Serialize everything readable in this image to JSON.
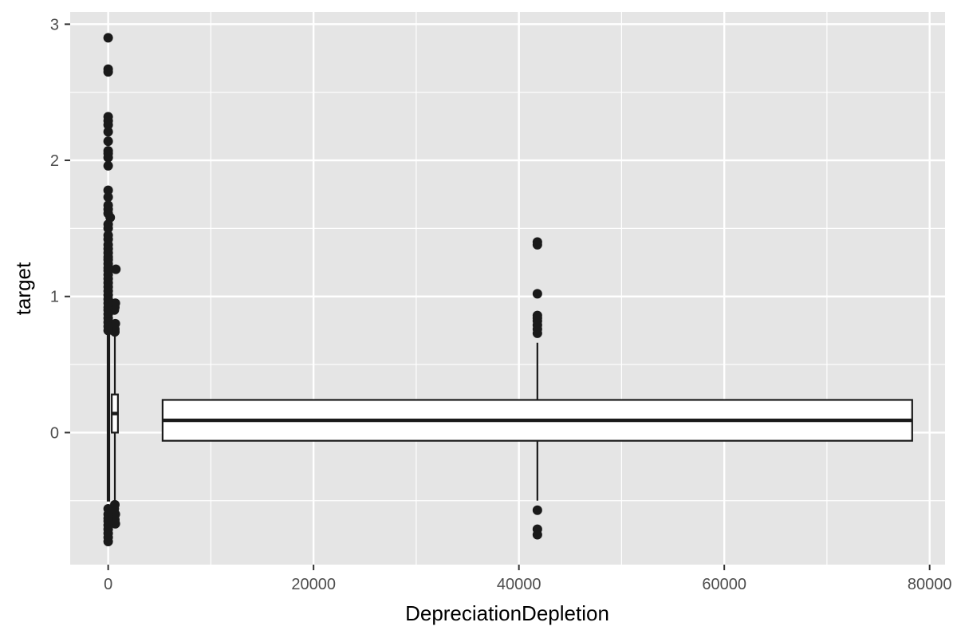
{
  "chart_data": {
    "type": "boxplot",
    "title": "",
    "xlabel": "DepreciationDepletion",
    "ylabel": "target",
    "xlim": [
      -3700,
      81500
    ],
    "ylim": [
      -0.97,
      3.09
    ],
    "x_ticks": [
      0,
      20000,
      40000,
      60000,
      80000
    ],
    "x_tick_labels": [
      "0",
      "20000",
      "40000",
      "60000",
      "80000"
    ],
    "y_ticks": [
      0,
      1,
      2,
      3
    ],
    "y_tick_labels": [
      "0",
      "1",
      "2",
      "3"
    ],
    "grid": true,
    "legend": "none",
    "colors": {
      "panel": "#e5e5e5",
      "grid": "#ffffff",
      "box_fill": "#ffffff",
      "stroke": "#1a1a1a",
      "point": "#1a1a1a"
    },
    "boxes": [
      {
        "center": 650,
        "width": 600,
        "q1": 0.0,
        "median": 0.14,
        "q3": 0.28,
        "whisker_low": -0.52,
        "whisker_high": 0.72,
        "outliers": [
          [
            650,
            0.74
          ],
          [
            650,
            0.76
          ],
          [
            600,
            0.78
          ],
          [
            700,
            0.8
          ],
          [
            650,
            0.92
          ],
          [
            700,
            0.95
          ],
          [
            600,
            0.9
          ],
          [
            750,
            1.2
          ],
          [
            650,
            -0.53
          ],
          [
            600,
            -0.56
          ],
          [
            700,
            -0.6
          ],
          [
            650,
            -0.64
          ],
          [
            600,
            -0.66
          ],
          [
            700,
            -0.67
          ]
        ]
      },
      {
        "center": 41800,
        "width": 73000,
        "q1": -0.06,
        "median": 0.09,
        "q3": 0.24,
        "whisker_low": -0.5,
        "whisker_high": 0.66,
        "outliers": [
          [
            41800,
            0.73
          ],
          [
            41800,
            0.76
          ],
          [
            41800,
            0.79
          ],
          [
            41800,
            0.82
          ],
          [
            41800,
            0.84
          ],
          [
            41800,
            0.86
          ],
          [
            41800,
            1.02
          ],
          [
            41800,
            1.38
          ],
          [
            41800,
            1.4
          ],
          [
            41800,
            -0.57
          ],
          [
            41800,
            -0.71
          ],
          [
            41800,
            -0.75
          ]
        ]
      },
      {
        "center": 0,
        "width": 100,
        "q1": -0.5,
        "median": 0.1,
        "q3": 0.72,
        "whisker_low": -0.5,
        "whisker_high": 0.72,
        "outliers": [
          [
            0,
            2.9
          ],
          [
            0,
            2.67
          ],
          [
            0,
            2.65
          ],
          [
            0,
            2.32
          ],
          [
            0,
            2.29
          ],
          [
            0,
            2.26
          ],
          [
            0,
            2.21
          ],
          [
            0,
            2.14
          ],
          [
            0,
            2.07
          ],
          [
            0,
            2.05
          ],
          [
            0,
            2.02
          ],
          [
            0,
            1.96
          ],
          [
            0,
            1.78
          ],
          [
            0,
            1.73
          ],
          [
            0,
            1.67
          ],
          [
            0,
            1.64
          ],
          [
            0,
            1.61
          ],
          [
            200,
            1.58
          ],
          [
            0,
            1.53
          ],
          [
            0,
            1.5
          ],
          [
            0,
            1.45
          ],
          [
            0,
            1.42
          ],
          [
            0,
            1.38
          ],
          [
            0,
            1.35
          ],
          [
            0,
            1.32
          ],
          [
            0,
            1.29
          ],
          [
            0,
            1.27
          ],
          [
            0,
            1.24
          ],
          [
            0,
            1.21
          ],
          [
            0,
            1.19
          ],
          [
            0,
            1.16
          ],
          [
            0,
            1.13
          ],
          [
            0,
            1.1
          ],
          [
            0,
            1.07
          ],
          [
            0,
            1.04
          ],
          [
            0,
            1.01
          ],
          [
            0,
            0.98
          ],
          [
            0,
            0.95
          ],
          [
            0,
            0.92
          ],
          [
            0,
            0.9
          ],
          [
            0,
            0.87
          ],
          [
            0,
            0.84
          ],
          [
            0,
            0.81
          ],
          [
            0,
            0.78
          ],
          [
            0,
            0.75
          ],
          [
            0,
            -0.56
          ],
          [
            0,
            -0.6
          ],
          [
            0,
            -0.63
          ],
          [
            0,
            -0.65
          ],
          [
            0,
            -0.68
          ],
          [
            0,
            -0.71
          ],
          [
            0,
            -0.74
          ],
          [
            0,
            -0.77
          ],
          [
            0,
            -0.8
          ]
        ]
      }
    ]
  }
}
